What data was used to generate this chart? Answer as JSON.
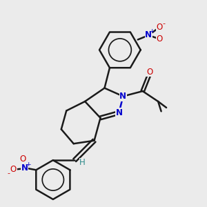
{
  "bg_color": "#ebebeb",
  "bond_color": "#1a1a1a",
  "N_color": "#0000cd",
  "O_color": "#cc0000",
  "H_color": "#2e8b8b",
  "line_width": 1.8,
  "fig_width": 3.0,
  "fig_height": 3.0,
  "dpi": 100,
  "xlim": [
    0,
    10
  ],
  "ylim": [
    0,
    10
  ]
}
